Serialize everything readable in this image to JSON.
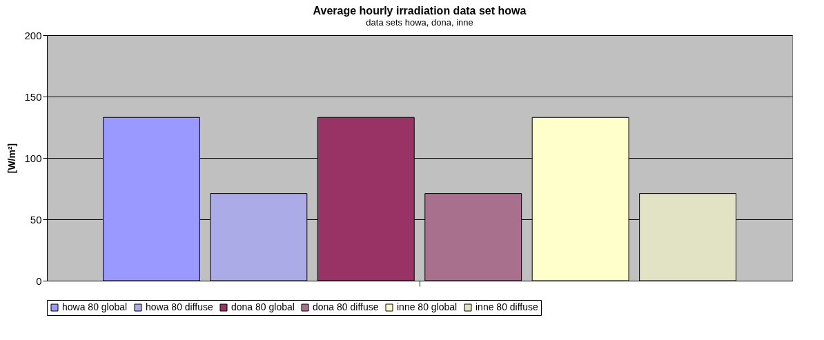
{
  "chart_data": {
    "type": "bar",
    "title": "Average hourly irradiation data set howa",
    "subtitle": "data sets howa, dona, inne",
    "ylabel": "[W/m²]",
    "categories": [
      null
    ],
    "series": [
      {
        "name": "howa 80 global",
        "color": "#9999ff",
        "values": [
          133
        ]
      },
      {
        "name": "howa 80 diffuse",
        "color": "#ababe8",
        "values": [
          71
        ]
      },
      {
        "name": "dona 80 global",
        "color": "#993366",
        "values": [
          133
        ]
      },
      {
        "name": "dona 80 diffuse",
        "color": "#a8708c",
        "values": [
          71
        ]
      },
      {
        "name": "inne 80 global",
        "color": "#ffffcc",
        "values": [
          133
        ]
      },
      {
        "name": "inne 80 diffuse",
        "color": "#e2e2c4",
        "values": [
          71
        ]
      }
    ],
    "ylim": [
      0,
      200
    ],
    "yticks": [
      0,
      50,
      100,
      150,
      200
    ],
    "grid": "y",
    "legend": "bottom"
  }
}
